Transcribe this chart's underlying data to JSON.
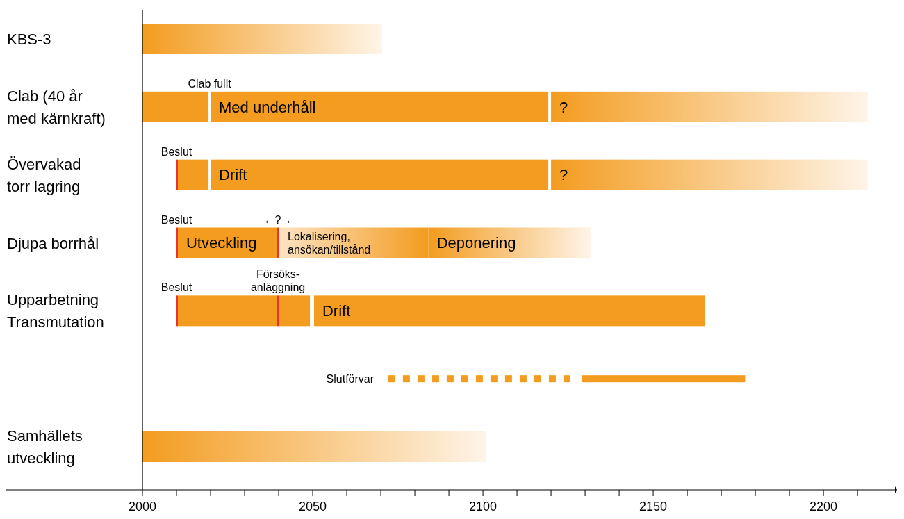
{
  "chart_data": {
    "type": "bar",
    "orientation": "horizontal",
    "categories": [
      "KBS-3",
      "Clab (40 år\nmed kärnkraft)",
      "Övervakad\ntorr lagring",
      "Djupa borrhål",
      "Upparbetning\nTransmutation",
      "Slutförvar",
      "Samhällets\nutveckling"
    ],
    "series": [
      {
        "color": "#f39c1f",
        "base": [
          null,
          2000,
          2010.4,
          2010.4,
          2010.4,
          null,
          null
        ],
        "values": [
          null,
          19.4,
          9,
          29.1,
          29.1,
          null,
          null
        ],
        "value_labels": [
          null,
          null,
          null,
          "Utveckling",
          null,
          null,
          null
        ]
      },
      {
        "color": "#f39c1f",
        "base": [
          null,
          2020,
          2020,
          null,
          2040.2,
          null,
          null
        ],
        "values": [
          null,
          99.2,
          99.2,
          null,
          9,
          null,
          null
        ],
        "value_labels": [
          null,
          "Med underhåll",
          "Drift",
          null,
          null,
          null,
          null
        ]
      },
      {
        "color": "#f39c1f",
        "base": [
          null,
          null,
          null,
          null,
          2050.4,
          null,
          null
        ],
        "values": [
          null,
          null,
          null,
          null,
          114.9,
          null,
          null
        ],
        "value_labels": [
          null,
          null,
          null,
          null,
          "Drift",
          null,
          null
        ]
      },
      {
        "color": "#fef4e8",
        "colors": [
          "#f39c1f",
          "#f39c1f",
          "#f39c1f",
          "#f39c1f",
          null,
          null,
          "#f39c1f"
        ],
        "base": [
          2000,
          2120,
          2120,
          2084,
          null,
          null,
          2000
        ],
        "values": [
          70.4,
          93,
          93,
          47.6,
          null,
          null,
          101
        ],
        "value_labels": [
          null,
          "?",
          "?",
          "Deponering",
          null,
          null,
          null
        ]
      },
      {
        "color": "#f39c1f",
        "colors": [
          null,
          null,
          null,
          "#fde3c2",
          null,
          null,
          null
        ],
        "base": [
          null,
          null,
          null,
          2040.2,
          null,
          null,
          null
        ],
        "values": [
          null,
          null,
          null,
          43.8,
          null,
          null,
          null
        ],
        "value_labels": [
          null,
          null,
          null,
          "Lokalisering,\nansökan/tillstånd",
          null,
          null,
          null
        ]
      },
      {
        "color": "#e8322a",
        "base": [
          null,
          null,
          2009.8,
          2009.8,
          2009.8,
          null,
          null
        ],
        "values": [
          null,
          null,
          0.6,
          0.6,
          0.6,
          null,
          null
        ]
      },
      {
        "color": "#e8322a",
        "base": [
          null,
          null,
          null,
          2039.5,
          2039.5,
          null,
          null
        ],
        "values": [
          null,
          null,
          null,
          0.7,
          0.7,
          null,
          null
        ]
      },
      {
        "color": "#f39c1f",
        "line_style": "dotted",
        "base": [
          null,
          null,
          null,
          null,
          null,
          2070,
          null
        ],
        "values": [
          null,
          null,
          null,
          null,
          null,
          57,
          null
        ]
      },
      {
        "color": "#f39c1f",
        "line_style": "solid",
        "base": [
          null,
          null,
          null,
          null,
          null,
          2129,
          null
        ],
        "values": [
          null,
          null,
          null,
          null,
          null,
          48,
          null
        ]
      }
    ],
    "xlim": [
      1960,
      2221
    ],
    "xticks": [
      2000,
      {
        "value": 2010,
        "label": null
      },
      {
        "value": 2020,
        "label": null
      },
      {
        "value": 2030,
        "label": null
      },
      {
        "value": 2040,
        "label": null
      },
      2050,
      {
        "value": 2060,
        "label": null
      },
      {
        "value": 2070,
        "label": null
      },
      {
        "value": 2080,
        "label": null
      },
      {
        "value": 2090,
        "label": null
      },
      2100,
      {
        "value": 2110,
        "label": null
      },
      {
        "value": 2120,
        "label": null
      },
      {
        "value": 2130,
        "label": null
      },
      {
        "value": 2140,
        "label": null
      },
      2150,
      {
        "value": 2160,
        "label": null
      },
      {
        "value": 2170,
        "label": null
      },
      {
        "value": 2180,
        "label": null
      },
      {
        "value": 2190,
        "label": null
      },
      2200,
      {
        "value": 2210,
        "label": null
      }
    ],
    "ref_lines": [
      {
        "axis": "x",
        "value": 2000,
        "color": "#000000"
      }
    ],
    "annotations": [
      {
        "text": "Clab fullt",
        "x": 2019.7,
        "y": "Clab (40 år\nmed kärnkraft)"
      },
      {
        "text": "Beslut",
        "x": 2010,
        "y": "Övervakad\ntorr lagring"
      },
      {
        "text": "Beslut",
        "x": 2010,
        "y": "Djupa borrhål"
      },
      {
        "text": "←?→",
        "x": 2039.8,
        "y": "Djupa borrhål"
      },
      {
        "text": "Beslut",
        "x": 2010,
        "y": "Upparbetning\nTransmutation"
      },
      {
        "text": "Försöks-\nanläggning",
        "x": 2039.8,
        "y": "Upparbetning\nTransmutation"
      }
    ]
  }
}
